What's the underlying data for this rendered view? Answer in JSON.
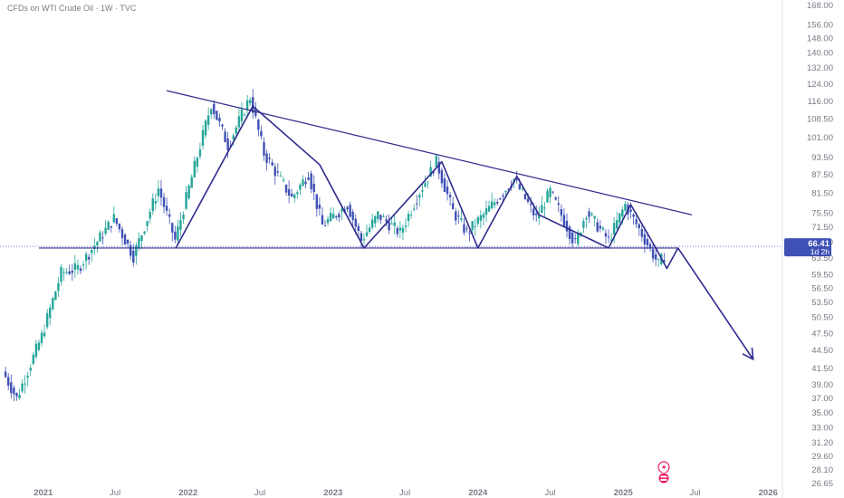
{
  "title": "CFDs on WTI Crude Oil · 1W · TVC",
  "colors": {
    "up": "#26a69a",
    "down": "#3f51b5",
    "pattern": "#2e2a8c",
    "axis_text": "#787b86",
    "price_tag": "#3f51b5"
  },
  "price_tag": {
    "value": "66.41",
    "countdown": "1d 2h"
  },
  "chart_data": {
    "type": "line",
    "instrument": "CFDs on WTI Crude Oil",
    "timeframe": "1W",
    "source": "TVC",
    "y_scale": "log",
    "ylim": [
      26.65,
      168.0
    ],
    "y_ticks": [
      "168.00",
      "156.00",
      "148.00",
      "140.00",
      "132.00",
      "124.00",
      "116.00",
      "108.50",
      "101.00",
      "93.50",
      "87.50",
      "81.50",
      "75.50",
      "71.50",
      "67.50",
      "63.50",
      "59.50",
      "56.50",
      "53.50",
      "50.50",
      "47.50",
      "44.50",
      "41.50",
      "39.00",
      "37.00",
      "35.00",
      "33.00",
      "31.20",
      "29.60",
      "28.10",
      "26.65"
    ],
    "x_ticks": [
      "2021",
      "Jul",
      "2022",
      "Jul",
      "2023",
      "Jul",
      "2024",
      "Jul",
      "2025",
      "Jul",
      "2026"
    ],
    "price_path": {
      "x": [
        "2020-09-28",
        "2020-11-02",
        "2021-01-04",
        "2021-02-22",
        "2021-04-05",
        "2021-07-05",
        "2021-08-23",
        "2021-10-25",
        "2021-12-06",
        "2022-03-07",
        "2022-04-18",
        "2022-06-13",
        "2022-07-18",
        "2022-09-26",
        "2022-11-07",
        "2022-12-12",
        "2023-02-13",
        "2023-03-20",
        "2023-05-01",
        "2023-06-26",
        "2023-08-14",
        "2023-09-25",
        "2023-11-06",
        "2023-12-11",
        "2024-01-22",
        "2024-04-08",
        "2024-06-03",
        "2024-07-08",
        "2024-09-09",
        "2024-10-07",
        "2024-12-02",
        "2025-01-13",
        "2025-02-17",
        "2025-04-07",
        "2025-04-21"
      ],
      "y": [
        41,
        37,
        47,
        60,
        61,
        74,
        64,
        83,
        68,
        115,
        98,
        118,
        95,
        80,
        88,
        72,
        78,
        68,
        75,
        70,
        82,
        92,
        76,
        70,
        75,
        86,
        74,
        82,
        67,
        76,
        68,
        78,
        71,
        62,
        64
      ]
    },
    "pattern_line": {
      "x": [
        "2021-12-01",
        "2022-06-13",
        "2022-11-28",
        "2023-03-20",
        "2023-10-02",
        "2024-01-01",
        "2024-04-08",
        "2024-06-03",
        "2024-11-25",
        "2025-01-20",
        "2025-03-24",
        "2025-04-21",
        "2025-05-19",
        "2025-11-24"
      ],
      "y": [
        66,
        114,
        91,
        66,
        92,
        66,
        87,
        75,
        66,
        78,
        66,
        61,
        66,
        43
      ]
    },
    "arrow_tip": {
      "x": "2025-11-24",
      "y": 43
    },
    "trendlines": [
      {
        "kind": "resistance",
        "x": [
          "2021-11-08",
          "2025-06-23"
        ],
        "y": [
          121,
          75
        ]
      },
      {
        "kind": "support",
        "x": [
          "2020-12-21",
          "2025-05-19"
        ],
        "y": [
          66,
          66
        ]
      }
    ],
    "current_price": 66.41,
    "grid": false,
    "legend": "none"
  }
}
